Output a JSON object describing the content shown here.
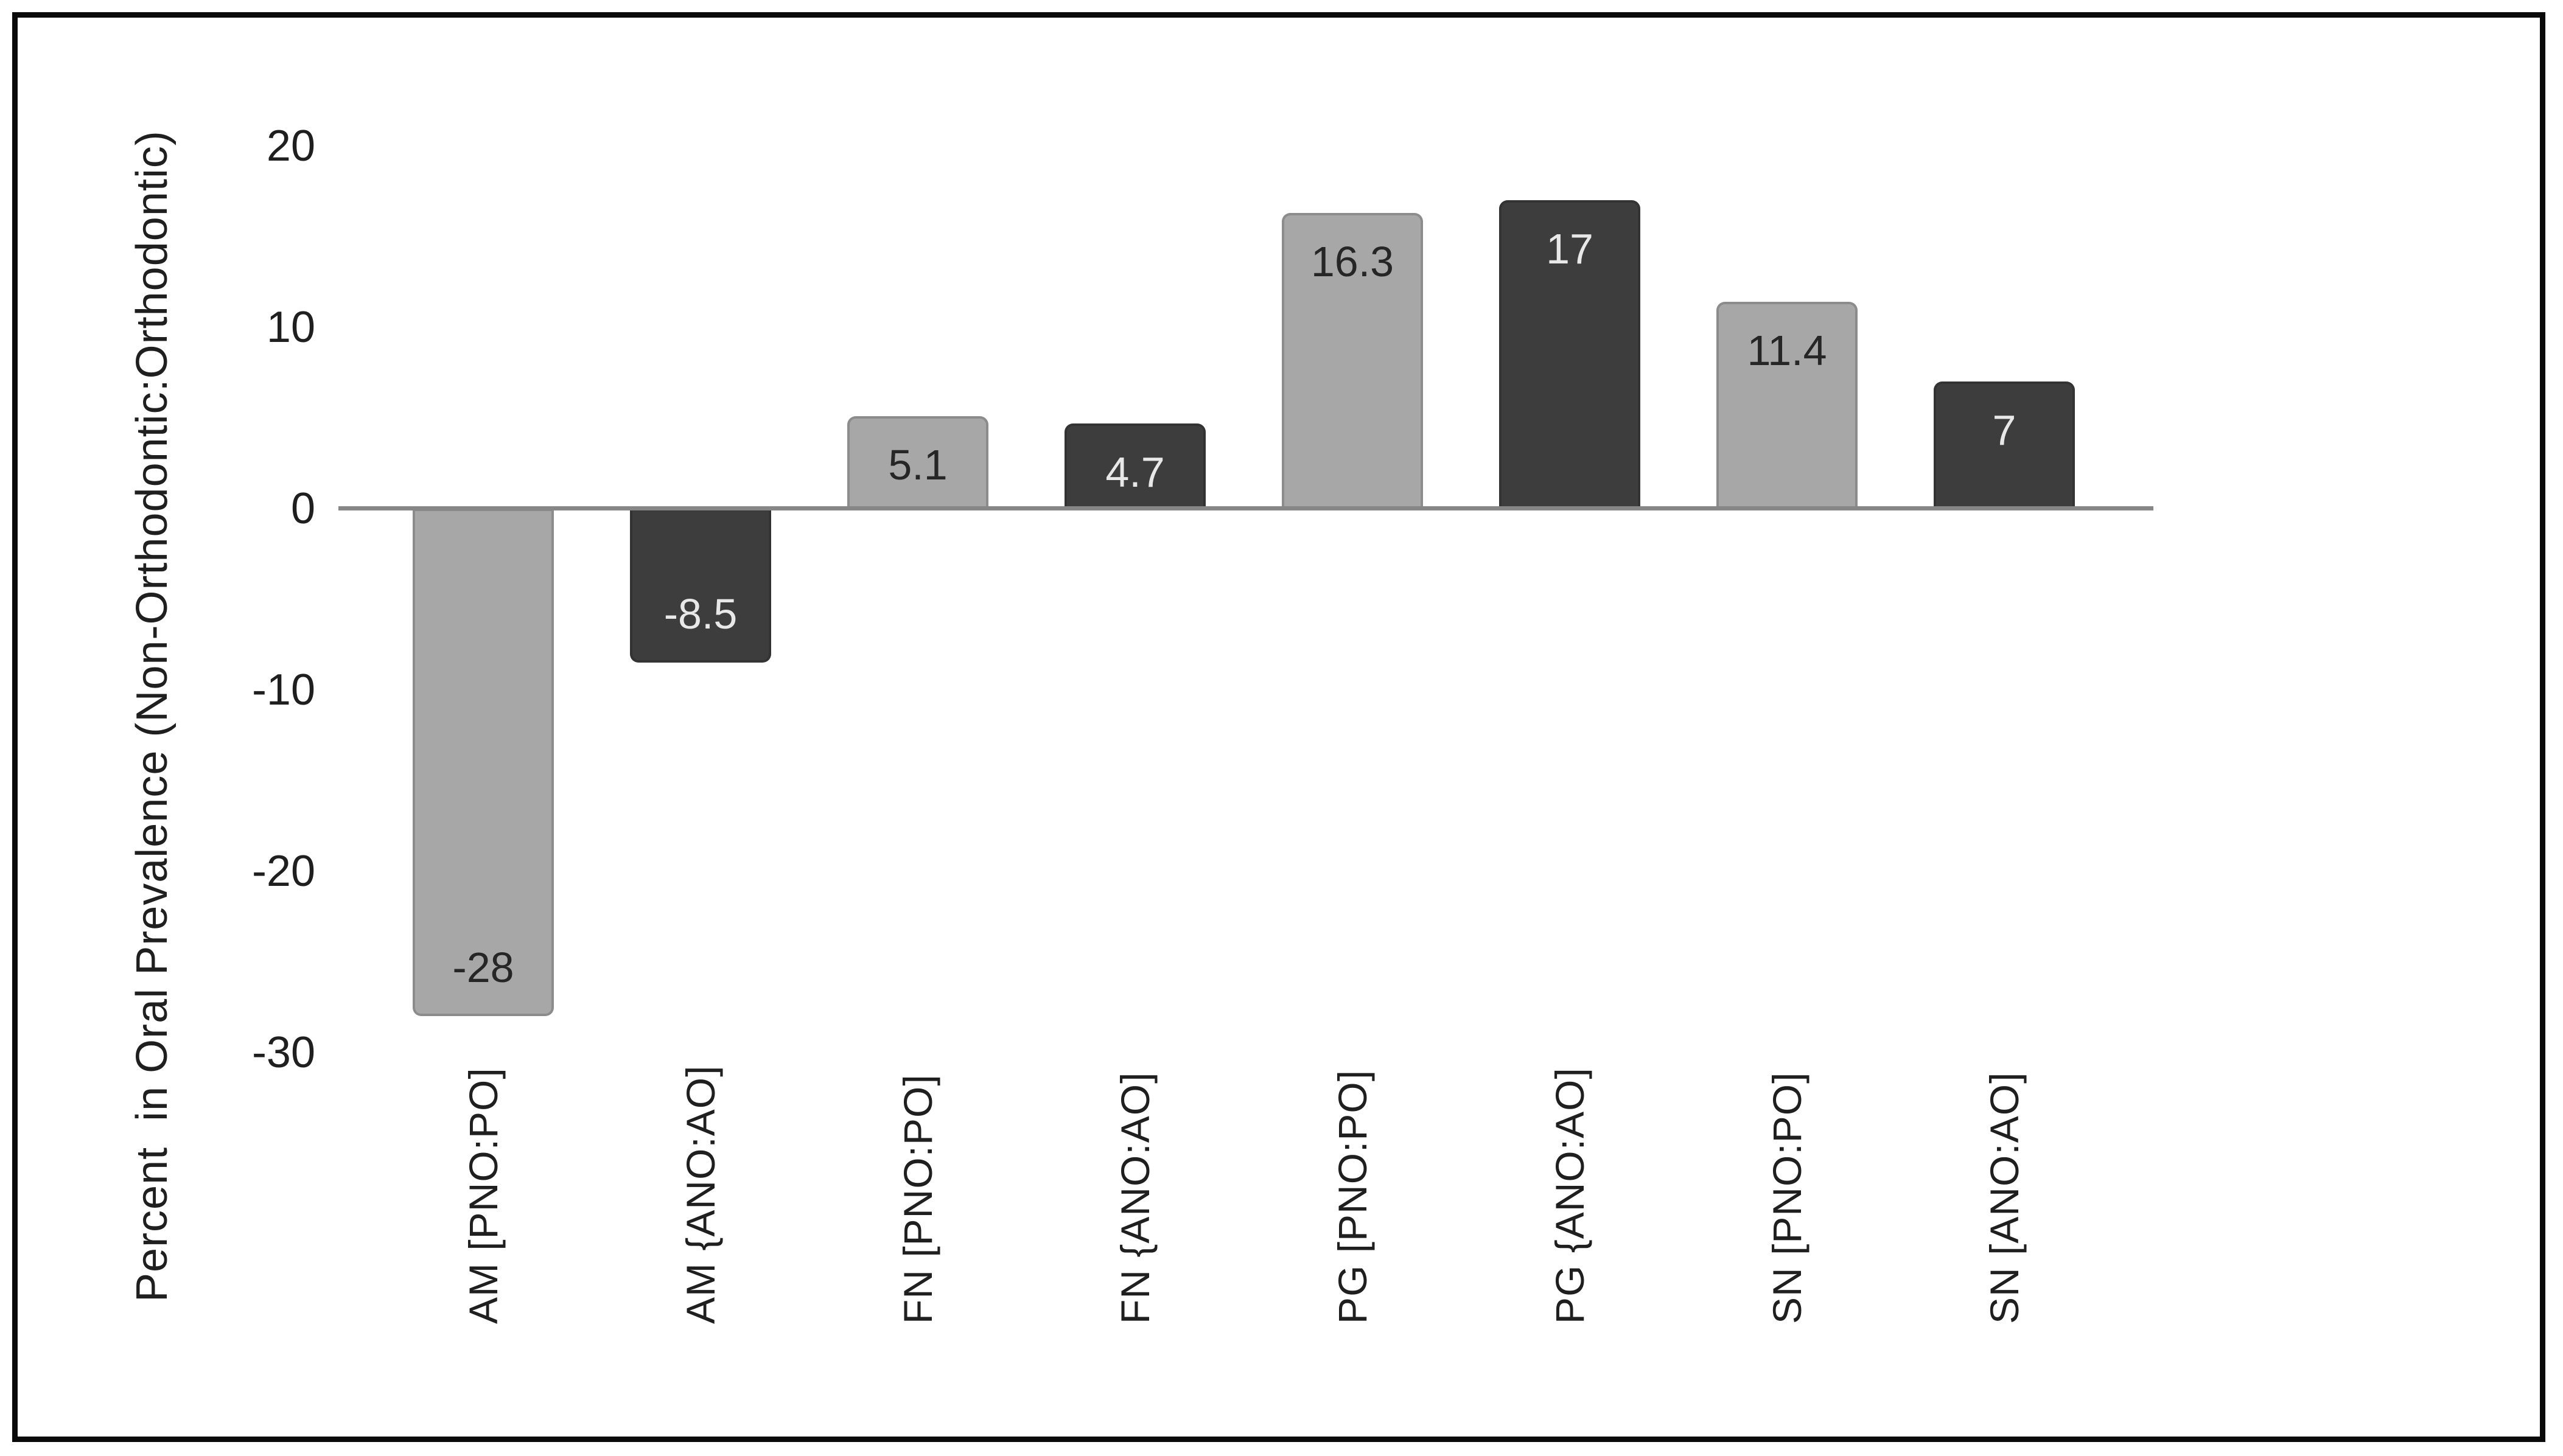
{
  "chart_data": {
    "type": "bar",
    "title": "",
    "xlabel": "",
    "ylabel": "Percent  in Oral Prevalence (Non-Orthodontic:Orthodontic)",
    "categories": [
      "AM [PNO:PO]",
      "AM {ANO:AO]",
      "FN [PNO:PO]",
      "FN {ANO:AO]",
      "PG [PNO:PO]",
      "PG {ANO:AO]",
      "SN [PNO:PO]",
      "SN [ANO:AO]"
    ],
    "values": [
      -28,
      -8.5,
      5.1,
      4.7,
      16.3,
      17,
      11.4,
      7
    ],
    "value_labels": [
      "-28",
      "-8.5",
      "5.1",
      "4.7",
      "16.3",
      "17",
      "11.4",
      "7"
    ],
    "ylim": [
      -30,
      20
    ],
    "ytick_values": [
      20,
      10,
      0,
      -10,
      -20,
      -30
    ],
    "ytick_labels": [
      "20",
      "10",
      "0",
      "-10",
      "-20",
      "-30"
    ],
    "grid": false,
    "legend_position": "none",
    "bar_fill_alternating": [
      "#a7a7a7",
      "#3d3d3d"
    ],
    "bar_label_colors_alternating": [
      "#262626",
      "#e8e8e8"
    ],
    "axis_line_color": "#878787",
    "text_color": "#1f1f1f",
    "frame_color": "#0a0a0a",
    "background_color": "#ffffff"
  }
}
